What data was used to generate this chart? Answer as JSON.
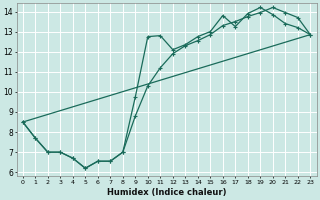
{
  "xlabel": "Humidex (Indice chaleur)",
  "xlim": [
    -0.5,
    23.5
  ],
  "ylim": [
    5.8,
    14.4
  ],
  "xticks": [
    0,
    1,
    2,
    3,
    4,
    5,
    6,
    7,
    8,
    9,
    10,
    11,
    12,
    13,
    14,
    15,
    16,
    17,
    18,
    19,
    20,
    21,
    22,
    23
  ],
  "yticks": [
    6,
    7,
    8,
    9,
    10,
    11,
    12,
    13,
    14
  ],
  "bg_color": "#cce8e4",
  "grid_color": "#ffffff",
  "line_color": "#1a6b5a",
  "line1_x": [
    0,
    1,
    2,
    3,
    4,
    5,
    6,
    7,
    8,
    9,
    10,
    11,
    12,
    13,
    14,
    15,
    16,
    17,
    18,
    19,
    20,
    21,
    22,
    23
  ],
  "line1_y": [
    8.5,
    7.7,
    7.0,
    7.0,
    6.7,
    6.2,
    6.55,
    6.55,
    7.0,
    9.75,
    12.75,
    12.8,
    12.1,
    12.35,
    12.75,
    13.0,
    13.8,
    13.25,
    13.9,
    14.2,
    13.85,
    13.4,
    13.2,
    12.85
  ],
  "line2_x": [
    0,
    1,
    2,
    3,
    4,
    5,
    6,
    7,
    8,
    9,
    10,
    11,
    12,
    13,
    14,
    15,
    16,
    17,
    18,
    19,
    20,
    21,
    22,
    23
  ],
  "line2_y": [
    8.5,
    7.7,
    7.0,
    7.0,
    6.7,
    6.2,
    6.55,
    6.55,
    7.0,
    8.8,
    10.3,
    11.2,
    11.9,
    12.3,
    12.55,
    12.85,
    13.3,
    13.5,
    13.75,
    13.95,
    14.2,
    13.95,
    13.7,
    12.85
  ],
  "line3_x": [
    0,
    23
  ],
  "line3_y": [
    8.5,
    12.85
  ]
}
